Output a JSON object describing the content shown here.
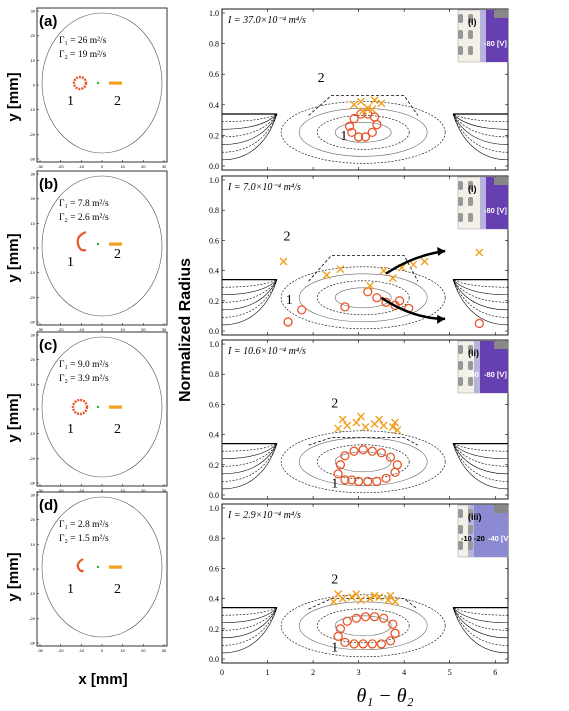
{
  "figure": {
    "left_ylabel": "y [mm]",
    "left_xlabel": "x [mm]",
    "right_ylabel": "Normalized Radius",
    "right_xlabel": "θ₁ − θ₂"
  },
  "left_panels": [
    {
      "letter": "(a)",
      "gamma1": "Γ₁ = 26  m²/s",
      "gamma2": "Γ₂ = 19  m²/s",
      "label1": "1",
      "label2": "2"
    },
    {
      "letter": "(b)",
      "gamma1": "Γ₁ = 7.8  m²/s",
      "gamma2": "Γ₂ = 2.6  m²/s",
      "label1": "1",
      "label2": "2"
    },
    {
      "letter": "(c)",
      "gamma1": "Γ₁ = 9.0  m²/s",
      "gamma2": "Γ₂ = 3.9  m²/s",
      "label1": "1",
      "label2": "2"
    },
    {
      "letter": "(d)",
      "gamma1": "Γ₁ = 2.8  m²/s",
      "gamma2": "Γ₂ = 1.5  m²/s",
      "label1": "1",
      "label2": "2"
    }
  ],
  "left_axis_ticks": [
    "-30",
    "-20",
    "-10",
    "0",
    "10",
    "20",
    "30"
  ],
  "right_panels": [
    {
      "intensity": "I = 37.0×10⁻⁴  m⁴/s",
      "inset_tag": "(i)",
      "inset_labels": [
        "-80 [V]"
      ],
      "label1": "1",
      "label2": "2"
    },
    {
      "intensity": "I = 7.0×10⁻⁴  m⁴/s",
      "inset_tag": "(i)",
      "inset_labels": [
        "-80 [V]"
      ],
      "label1": "1",
      "label2": "2"
    },
    {
      "intensity": "I = 10.6×10⁻⁴  m⁴/s",
      "inset_tag": "(ii)",
      "inset_labels": [
        "-40",
        "-80 [V]"
      ],
      "label1": "1",
      "label2": "2"
    },
    {
      "intensity": "I = 2.9×10⁻⁴  m⁴/s",
      "inset_tag": "(iii)",
      "inset_labels": [
        "-10",
        "-20",
        "-40 [V]"
      ],
      "label1": "1",
      "label2": "2"
    }
  ],
  "right_yticks": [
    "0.0",
    "0.2",
    "0.4",
    "0.6",
    "0.8",
    "1.0"
  ],
  "chart_data": {
    "type": "scatter",
    "x_ticks": [
      0,
      1,
      2,
      3,
      4,
      5,
      6
    ],
    "y_ticks": [
      0.0,
      0.2,
      0.4,
      0.6,
      0.8,
      1.0
    ],
    "xlim": [
      0,
      6.28
    ],
    "ylim": [
      0,
      1.0
    ],
    "panels": [
      {
        "vortex1": {
          "marker": "circle",
          "color": "#e8572a",
          "x": [
            2.85,
            3.0,
            3.15,
            3.3,
            3.4,
            3.35,
            3.2,
            3.05,
            2.9,
            2.8
          ],
          "y": [
            0.22,
            0.19,
            0.19,
            0.22,
            0.27,
            0.32,
            0.34,
            0.34,
            0.31,
            0.26
          ]
        },
        "vortex2": {
          "marker": "x",
          "color": "#f0a020",
          "x": [
            2.9,
            3.05,
            3.2,
            3.35,
            3.5,
            3.1,
            3.3
          ],
          "y": [
            0.4,
            0.42,
            0.38,
            0.43,
            0.41,
            0.36,
            0.37
          ]
        }
      },
      {
        "vortex1": {
          "marker": "circle",
          "color": "#e8572a",
          "x": [
            1.45,
            1.75,
            2.7,
            3.2,
            3.4,
            3.6,
            3.8,
            3.9,
            4.1,
            5.65
          ],
          "y": [
            0.06,
            0.14,
            0.16,
            0.26,
            0.22,
            0.19,
            0.17,
            0.2,
            0.15,
            0.05
          ]
        },
        "vortex2": {
          "marker": "x",
          "color": "#f0a020",
          "x": [
            1.35,
            2.3,
            2.6,
            3.25,
            3.55,
            3.75,
            3.95,
            4.2,
            4.45,
            5.65
          ],
          "y": [
            0.46,
            0.37,
            0.41,
            0.3,
            0.4,
            0.35,
            0.42,
            0.44,
            0.46,
            0.52
          ]
        }
      },
      {
        "vortex1": {
          "marker": "circle",
          "color": "#e8572a",
          "x": [
            2.55,
            2.7,
            2.85,
            3.0,
            3.2,
            3.4,
            3.6,
            3.8,
            3.85,
            3.7,
            3.5,
            3.3,
            3.1,
            2.9,
            2.7,
            2.6
          ],
          "y": [
            0.14,
            0.1,
            0.1,
            0.09,
            0.09,
            0.09,
            0.11,
            0.15,
            0.2,
            0.25,
            0.28,
            0.29,
            0.3,
            0.29,
            0.26,
            0.2
          ]
        },
        "vortex2": {
          "marker": "x",
          "color": "#f0a020",
          "x": [
            2.55,
            2.75,
            2.95,
            3.15,
            3.35,
            3.55,
            3.75,
            3.85,
            2.65,
            3.05,
            3.45,
            3.8
          ],
          "y": [
            0.44,
            0.46,
            0.48,
            0.45,
            0.47,
            0.46,
            0.45,
            0.43,
            0.5,
            0.52,
            0.5,
            0.48
          ]
        }
      },
      {
        "vortex1": {
          "marker": "circle",
          "color": "#e8572a",
          "x": [
            2.55,
            2.7,
            2.9,
            3.1,
            3.3,
            3.5,
            3.7,
            3.8,
            3.75,
            3.55,
            3.35,
            3.15,
            2.95,
            2.75,
            2.6
          ],
          "y": [
            0.15,
            0.11,
            0.1,
            0.1,
            0.1,
            0.1,
            0.12,
            0.17,
            0.23,
            0.27,
            0.28,
            0.28,
            0.27,
            0.25,
            0.2
          ]
        },
        "vortex2": {
          "marker": "x",
          "color": "#f0a020",
          "x": [
            2.45,
            2.65,
            2.85,
            3.05,
            3.25,
            3.45,
            3.65,
            3.8,
            2.55,
            2.95,
            3.35,
            3.7
          ],
          "y": [
            0.38,
            0.4,
            0.41,
            0.39,
            0.4,
            0.41,
            0.39,
            0.38,
            0.43,
            0.43,
            0.42,
            0.42
          ]
        }
      }
    ]
  }
}
